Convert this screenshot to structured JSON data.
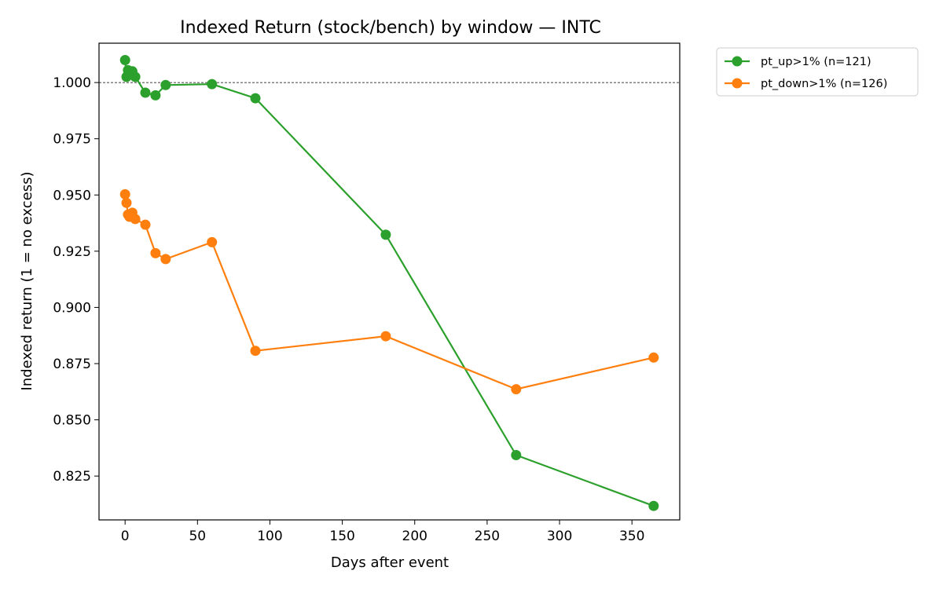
{
  "chart_data": {
    "type": "line",
    "title": "Indexed Return (stock/bench) by window — INTC",
    "xlabel": "Days after event",
    "ylabel": "Indexed return (1 = no excess)",
    "xlim": [
      -18,
      383
    ],
    "ylim": [
      0.8055,
      1.0175
    ],
    "xticks": [
      0,
      50,
      100,
      150,
      200,
      250,
      300,
      350
    ],
    "yticks": [
      0.825,
      0.85,
      0.875,
      0.9,
      0.925,
      0.95,
      0.975,
      1.0
    ],
    "ytick_labels": [
      "0.825",
      "0.850",
      "0.875",
      "0.900",
      "0.925",
      "0.950",
      "0.975",
      "1.000"
    ],
    "reference_line": {
      "y": 1.0,
      "style": "dashed"
    },
    "legend_position": "outside-top-right",
    "grid": false,
    "series": [
      {
        "name": "pt_up>1% (n=121)",
        "color": "#2ca02c",
        "x": [
          0,
          1,
          2,
          3,
          4,
          5,
          7,
          14,
          21,
          28,
          60,
          90,
          180,
          270,
          365
        ],
        "y": [
          1.01,
          1.0025,
          1.0055,
          1.0035,
          1.0045,
          1.005,
          1.0025,
          0.9955,
          0.9943,
          0.9989,
          0.9993,
          0.993,
          0.9323,
          0.8343,
          0.8117
        ]
      },
      {
        "name": "pt_down>1% (n=126)",
        "color": "#ff7f0e",
        "x": [
          0,
          1,
          2,
          3,
          4,
          5,
          7,
          14,
          21,
          28,
          60,
          90,
          180,
          270,
          365
        ],
        "y": [
          0.9503,
          0.9465,
          0.9413,
          0.9403,
          0.9413,
          0.9421,
          0.9393,
          0.9368,
          0.9241,
          0.9215,
          0.929,
          0.8807,
          0.8872,
          0.8636,
          0.8777
        ]
      }
    ]
  }
}
